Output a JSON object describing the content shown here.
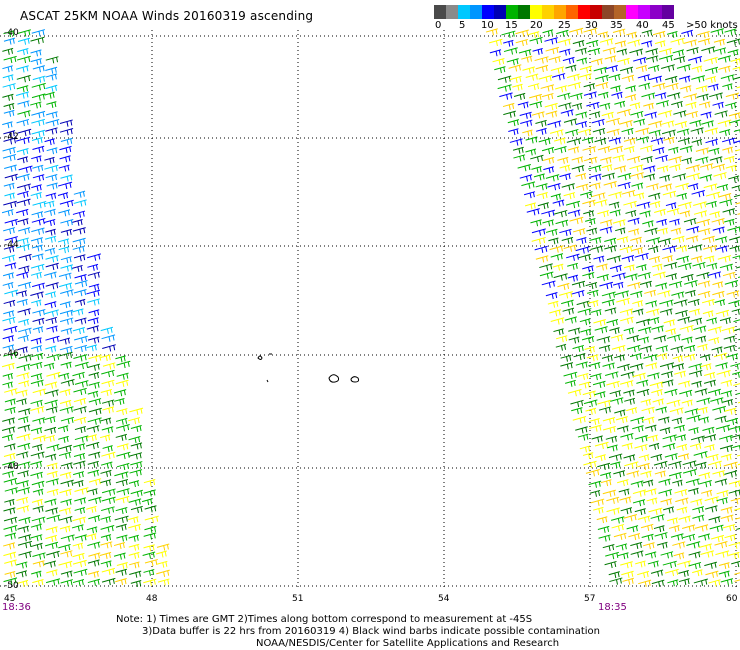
{
  "title": "ASCAT 25KM NOAA Winds 20160319 ascending",
  "legend": {
    "labels": [
      "0",
      "5",
      "10",
      "15",
      "20",
      "25",
      "30",
      "35",
      "40",
      "45",
      ">50 knots"
    ],
    "colors": [
      "#4a4a4a",
      "#8a8a8a",
      "#00c8ff",
      "#0096ff",
      "#0000ff",
      "#0000b4",
      "#00b400",
      "#007800",
      "#ffff00",
      "#ffd200",
      "#ffa500",
      "#ff6400",
      "#ff0000",
      "#c80000",
      "#8c4628",
      "#b46428",
      "#ff00ff",
      "#c800ff",
      "#8c00c8",
      "#6400a0"
    ]
  },
  "map": {
    "latitudes": [
      "-40",
      "-42",
      "-44",
      "-46",
      "-48",
      "-50"
    ],
    "longitudes": [
      "45",
      "48",
      "51",
      "54",
      "57",
      "60"
    ],
    "time_left": "18:36",
    "time_right": "18:35"
  },
  "notes": {
    "line1": "Note: 1) Times are GMT 2)Times along bottom correspond to measurement at -45S",
    "line2": "3)Data buffer is 22 hrs from 20160319 4) Black wind barbs indicate possible contamination",
    "line3": "NOAA/NESDIS/Center for Satellite Applications and Research"
  }
}
